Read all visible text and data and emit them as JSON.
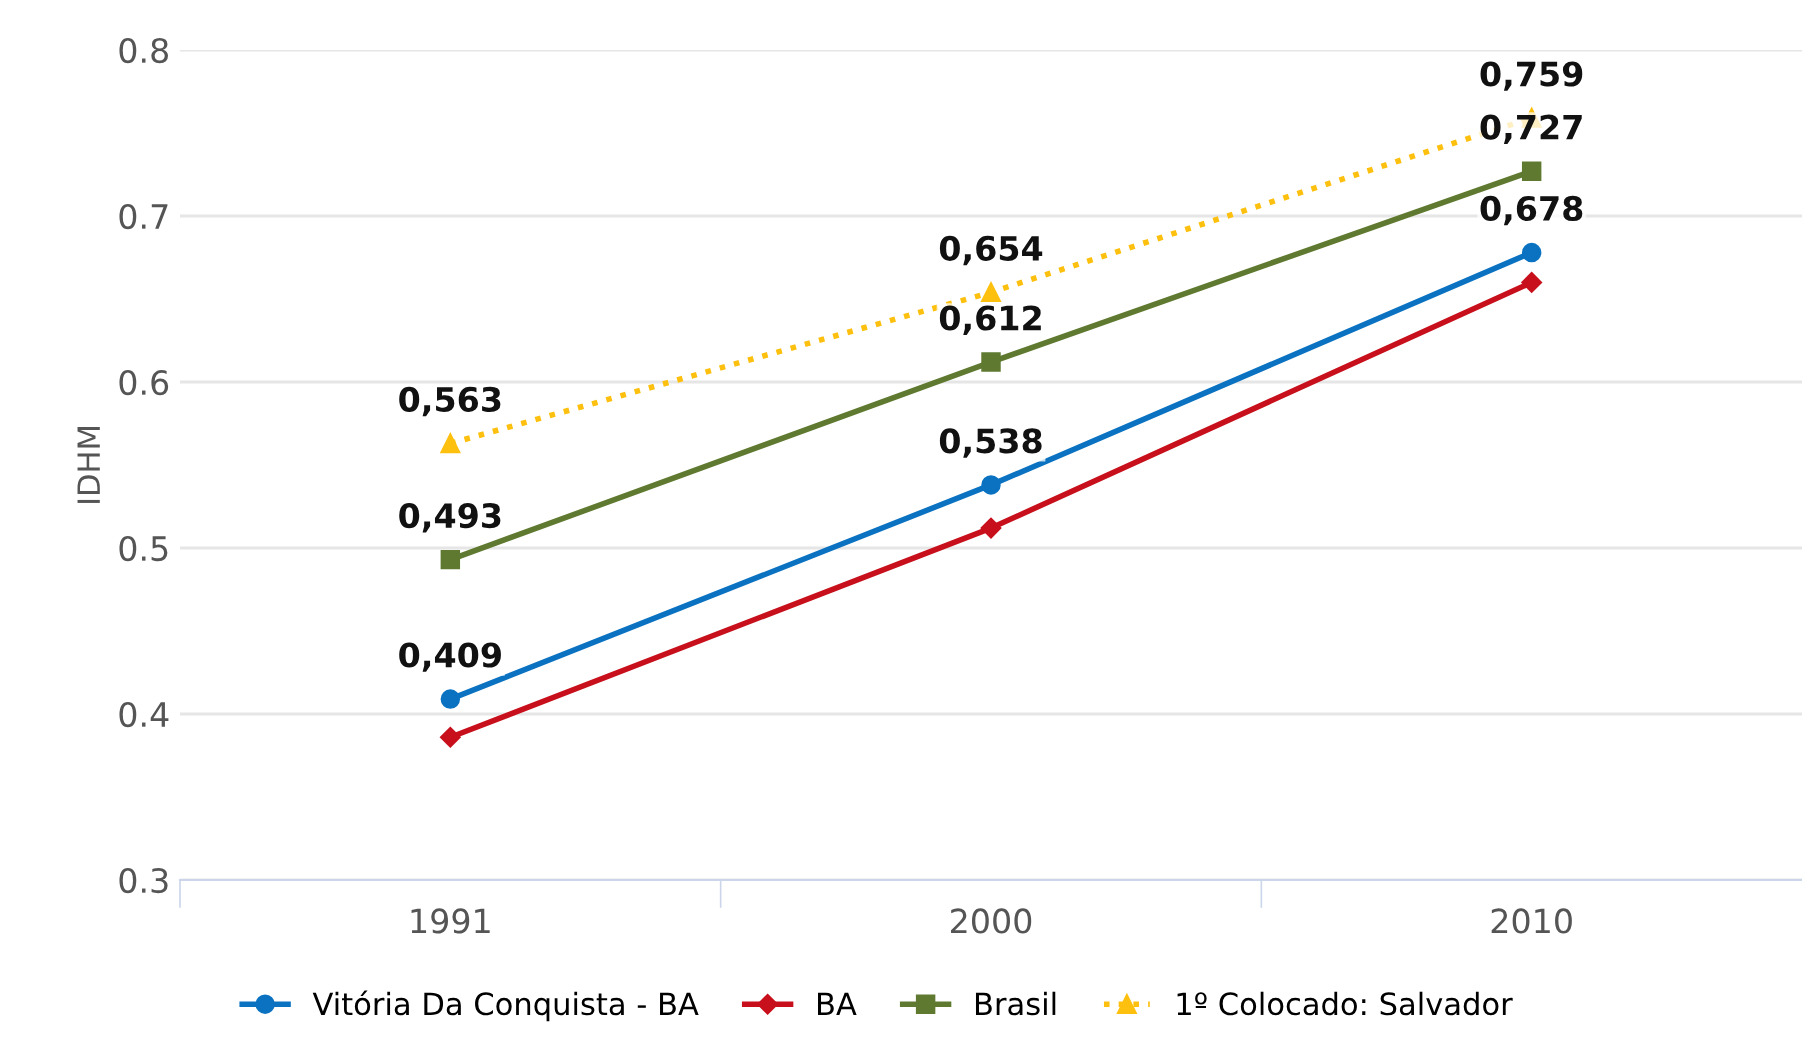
{
  "chart_data": {
    "type": "line",
    "ylabel": "IDHM",
    "categories": [
      "1991",
      "2000",
      "2010"
    ],
    "ylim": [
      0.3,
      0.8
    ],
    "yticks": [
      0.3,
      0.4,
      0.5,
      0.6,
      0.7,
      0.8
    ],
    "grid": "y",
    "legend": "bottom",
    "series": [
      {
        "name": "Vitória Da Conquista - BA",
        "color": "#0a72c1",
        "marker": "circle",
        "line_style": "solid",
        "values": [
          0.409,
          0.538,
          0.678
        ],
        "value_labels": [
          "0,409",
          "0,538",
          "0,678"
        ]
      },
      {
        "name": "BA",
        "color": "#c8101c",
        "marker": "diamond",
        "line_style": "solid",
        "values": [
          0.386,
          0.512,
          0.66
        ]
      },
      {
        "name": "Brasil",
        "color": "#5f7a30",
        "marker": "square",
        "line_style": "solid",
        "values": [
          0.493,
          0.612,
          0.727
        ],
        "value_labels": [
          "0,493",
          "0,612",
          "0,727"
        ]
      },
      {
        "name": "1º Colocado: Salvador",
        "color": "#fdc00f",
        "marker": "triangle",
        "line_style": "dotted",
        "values": [
          0.563,
          0.654,
          0.759
        ],
        "value_labels": [
          "0,563",
          "0,654",
          "0,759"
        ]
      }
    ]
  }
}
